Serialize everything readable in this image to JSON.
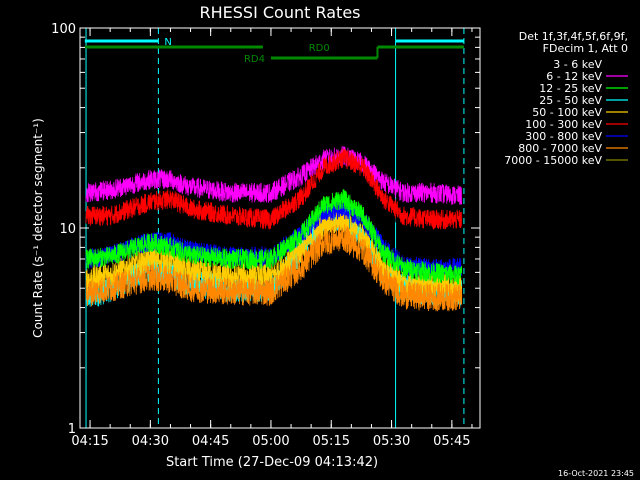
{
  "chart_data": {
    "type": "line",
    "title": "RHESSI Count Rates",
    "xlabel": "Start Time (27-Dec-09 04:13:42)",
    "ylabel": "Count Rate (s⁻¹ detector segment⁻¹)",
    "yscale": "log",
    "ylim": [
      1,
      100
    ],
    "xlim_minutes": [
      252.5,
      352
    ],
    "x_ticks": [
      "04:15",
      "04:30",
      "04:45",
      "05:00",
      "05:15",
      "05:30",
      "05:45"
    ],
    "y_ticks": [
      "1",
      "10",
      "100"
    ],
    "legend_header": [
      "Det 1f,3f,4f,5f,6f,9f,",
      "FDecim 1, Att 0"
    ],
    "legend_position": "right",
    "footer_date": "16-Oct-2021 23:45",
    "annotations": {
      "night": [
        {
          "start": "04:13:42",
          "end": "04:32:00",
          "label": "N"
        },
        {
          "start": "05:31:00",
          "end": "05:48:00",
          "label": ""
        }
      ],
      "saa_lines_solid": [
        "04:14:00",
        "05:31:00"
      ],
      "saa_lines_dashed": [
        "04:32:00",
        "05:48:00"
      ],
      "attenuator_bars": [
        {
          "start": "04:13:42",
          "end": "05:48:00",
          "label": "RD0",
          "level": "upper"
        },
        {
          "start": "05:00:00",
          "end": "05:26:00",
          "label": "RD4",
          "level": "lower"
        }
      ]
    },
    "series": [
      {
        "name": "3 - 6 keV",
        "color": "#000000",
        "times": [
          "04:14",
          "04:20",
          "04:30",
          "04:35",
          "04:40",
          "04:50",
          "05:00",
          "05:08",
          "05:13",
          "05:18",
          "05:23",
          "05:28",
          "05:33",
          "05:40",
          "05:47"
        ],
        "values": [
          11.5,
          11.8,
          13.5,
          14.0,
          12.5,
          11.0,
          11.0,
          14.0,
          17.5,
          18.5,
          16.0,
          12.5,
          11.0,
          11.0,
          10.5
        ]
      },
      {
        "name": "6 - 12 keV",
        "color": "#ff00ff",
        "times": [
          "04:14",
          "04:20",
          "04:30",
          "04:35",
          "04:40",
          "04:50",
          "05:00",
          "05:08",
          "05:13",
          "05:18",
          "05:23",
          "05:28",
          "05:33",
          "05:40",
          "05:47"
        ],
        "values": [
          15.0,
          15.5,
          17.5,
          17.5,
          16.0,
          15.0,
          15.0,
          18.5,
          22.0,
          23.0,
          21.0,
          17.0,
          15.0,
          15.0,
          14.5
        ]
      },
      {
        "name": "12 - 25 keV",
        "color": "#00ff00",
        "times": [
          "04:14",
          "04:20",
          "04:30",
          "04:35",
          "04:40",
          "04:50",
          "05:00",
          "05:08",
          "05:13",
          "05:18",
          "05:23",
          "05:28",
          "05:33",
          "05:40",
          "05:47"
        ],
        "values": [
          7.0,
          7.2,
          8.5,
          8.0,
          7.3,
          7.0,
          7.0,
          9.5,
          13.0,
          14.0,
          11.5,
          7.5,
          6.3,
          6.0,
          5.8
        ]
      },
      {
        "name": "25 - 50 keV",
        "color": "#00ffff",
        "times": [
          "04:14",
          "04:20",
          "04:30",
          "04:35",
          "04:40",
          "04:50",
          "05:00",
          "05:08",
          "05:13",
          "05:18",
          "05:23",
          "05:28",
          "05:33",
          "05:40",
          "05:47"
        ],
        "values": [
          4.5,
          5.0,
          6.3,
          6.0,
          5.3,
          5.0,
          5.0,
          8.0,
          11.0,
          11.5,
          9.0,
          6.0,
          5.0,
          4.8,
          4.7
        ]
      },
      {
        "name": "50 - 100 keV",
        "color": "#ffcc00",
        "times": [
          "04:14",
          "04:20",
          "04:30",
          "04:35",
          "04:40",
          "04:50",
          "05:00",
          "05:08",
          "05:13",
          "05:18",
          "05:23",
          "05:28",
          "05:33",
          "05:40",
          "05:47"
        ],
        "values": [
          5.5,
          5.8,
          7.0,
          6.8,
          6.0,
          5.7,
          5.7,
          8.0,
          10.5,
          11.0,
          9.0,
          6.2,
          5.3,
          5.2,
          5.0
        ]
      },
      {
        "name": "100 - 300 keV",
        "color": "#ff0000",
        "times": [
          "04:14",
          "04:20",
          "04:30",
          "04:35",
          "04:40",
          "04:50",
          "05:00",
          "05:08",
          "05:13",
          "05:18",
          "05:23",
          "05:28",
          "05:33",
          "05:40",
          "05:47"
        ],
        "values": [
          11.5,
          11.5,
          13.5,
          14.0,
          12.5,
          11.5,
          11.0,
          14.5,
          20.0,
          22.5,
          20.0,
          14.0,
          11.5,
          11.0,
          11.0
        ]
      },
      {
        "name": "300 - 800 keV",
        "color": "#0000ff",
        "times": [
          "04:14",
          "04:20",
          "04:30",
          "04:35",
          "04:40",
          "04:50",
          "05:00",
          "05:08",
          "05:13",
          "05:18",
          "05:23",
          "05:28",
          "05:33",
          "05:40",
          "05:47"
        ],
        "values": [
          7.0,
          7.3,
          8.6,
          8.5,
          7.7,
          7.2,
          7.2,
          9.5,
          12.0,
          12.5,
          11.0,
          8.0,
          6.5,
          6.3,
          6.3
        ]
      },
      {
        "name": "800 - 7000 keV",
        "color": "#ff8800",
        "times": [
          "04:14",
          "04:20",
          "04:30",
          "04:35",
          "04:40",
          "04:50",
          "05:00",
          "05:08",
          "05:13",
          "05:18",
          "05:23",
          "05:28",
          "05:33",
          "05:40",
          "05:47"
        ],
        "values": [
          4.7,
          5.0,
          5.7,
          5.5,
          5.0,
          4.8,
          4.8,
          6.5,
          8.5,
          9.0,
          7.7,
          5.5,
          4.6,
          4.5,
          4.5
        ]
      },
      {
        "name": "7000 - 15000 keV",
        "color": "#888800",
        "times": [],
        "values": []
      }
    ]
  }
}
